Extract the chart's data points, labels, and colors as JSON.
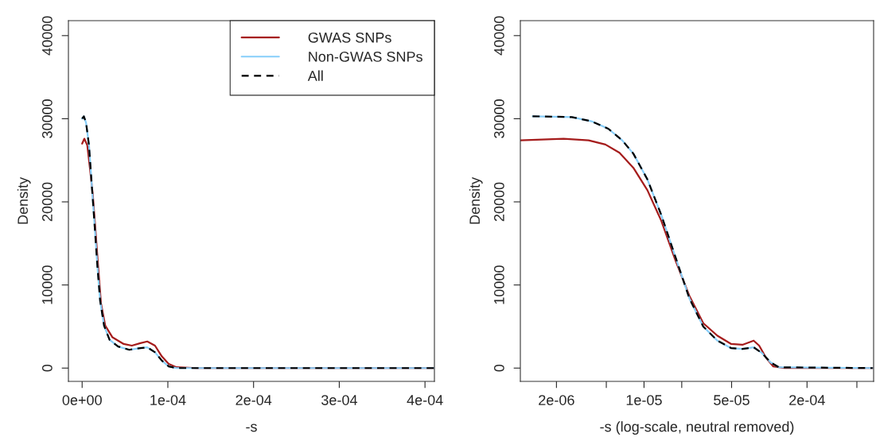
{
  "chart_data": [
    {
      "type": "line",
      "xlabel": "-s",
      "ylabel": "Density",
      "legend": "top right",
      "grid": false,
      "xlim": [
        -1.6e-05,
        0.000411
      ],
      "ylim": [
        -1600,
        41800
      ],
      "xticks": [
        {
          "value": 0,
          "label": "0e+00"
        },
        {
          "value": 0.0001,
          "label": "1e-04"
        },
        {
          "value": 0.0002,
          "label": "2e-04"
        },
        {
          "value": 0.0003,
          "label": "3e-04"
        },
        {
          "value": 0.0004,
          "label": "4e-04"
        }
      ],
      "yticks": [
        0,
        10000,
        20000,
        30000,
        40000
      ],
      "series": [
        {
          "name": "GWAS SNPs",
          "color": "#a51c1c",
          "line_style": "solid",
          "x": [
            0,
            2.6e-06,
            6e-06,
            9e-06,
            1.25e-05,
            1.57e-05,
            1.9e-05,
            2.2e-05,
            2.7e-05,
            3.54e-05,
            4.85e-05,
            5.8e-05,
            6.8e-05,
            7.6e-05,
            8.5e-05,
            9.3e-05,
            0.000101,
            0.00011,
            0.000134,
            0.000411
          ],
          "values": [
            27000,
            27600,
            26800,
            24100,
            20800,
            16400,
            11800,
            7800,
            5100,
            3700,
            2900,
            2700,
            3000,
            3200,
            2700,
            1400,
            500,
            100,
            0,
            0
          ]
        },
        {
          "name": "Non-GWAS SNPs",
          "color": "#87cefa",
          "line_style": "solid",
          "x": [
            0,
            2e-06,
            4.6e-06,
            8e-06,
            1.1e-05,
            1.44e-05,
            1.77e-05,
            2.1e-05,
            2.56e-05,
            3.2e-05,
            4.2e-05,
            5.5e-05,
            6.8e-05,
            7.6e-05,
            8.5e-05,
            9.3e-05,
            0.000101,
            0.00011,
            0.000411
          ],
          "values": [
            30000,
            30300,
            29500,
            26800,
            22400,
            17400,
            12400,
            8100,
            5100,
            3400,
            2600,
            2200,
            2400,
            2500,
            1900,
            900,
            200,
            0,
            0
          ]
        },
        {
          "name": "All",
          "color": "#000000",
          "line_style": "dashed",
          "x": [
            0,
            2e-06,
            4.6e-06,
            8e-06,
            1.1e-05,
            1.44e-05,
            1.77e-05,
            2.1e-05,
            2.56e-05,
            3.2e-05,
            4.2e-05,
            5.5e-05,
            6.8e-05,
            7.6e-05,
            8.5e-05,
            9.3e-05,
            0.000101,
            0.00011,
            0.000411
          ],
          "values": [
            30000,
            30300,
            29500,
            26800,
            22400,
            17400,
            12400,
            8100,
            5100,
            3400,
            2600,
            2200,
            2400,
            2500,
            1900,
            900,
            200,
            0,
            0
          ]
        }
      ]
    },
    {
      "type": "line",
      "xlabel": "-s (log-scale, neutral removed)",
      "ylabel": "Density",
      "grid": false,
      "log": "x",
      "xlim": [
        1.03e-06,
        0.00068
      ],
      "ylim": [
        -1600,
        41800
      ],
      "xticks": [
        {
          "value": 2e-06,
          "label": "2e-06"
        },
        {
          "value": 5e-06,
          "label": null
        },
        {
          "value": 1e-05,
          "label": "1e-05"
        },
        {
          "value": 2e-05,
          "label": null
        },
        {
          "value": 5e-05,
          "label": "5e-05"
        },
        {
          "value": 0.0001,
          "label": null
        },
        {
          "value": 0.0002,
          "label": "2e-04"
        },
        {
          "value": 0.0005,
          "label": null
        }
      ],
      "yticks": [
        0,
        10000,
        20000,
        30000,
        40000
      ],
      "series": [
        {
          "color": "#a51c1c",
          "line_style": "solid",
          "x": [
            1.03e-06,
            2.28e-06,
            3.61e-06,
            4.92e-06,
            6.37e-06,
            8.22e-06,
            1.064e-05,
            1.375e-05,
            1.778e-05,
            2.3e-05,
            2.97e-05,
            3.85e-05,
            4.97e-05,
            6.1e-05,
            7.5e-05,
            8.3e-05,
            9.46e-05,
            0.0001076,
            0.000132,
            0.000668
          ],
          "values": [
            27400,
            27600,
            27400,
            26900,
            25900,
            24100,
            21400,
            17700,
            13000,
            8700,
            5400,
            3900,
            2900,
            2800,
            3300,
            2700,
            1200,
            200,
            0,
            0
          ]
        },
        {
          "color": "#87cefa",
          "line_style": "solid",
          "x": [
            1.29e-06,
            2.65e-06,
            3.8e-06,
            5.18e-06,
            6.7e-06,
            8.22e-06,
            1.064e-05,
            1.375e-05,
            1.778e-05,
            2.3e-05,
            2.97e-05,
            3.85e-05,
            4.97e-05,
            6.1e-05,
            7.5e-05,
            8.75e-05,
            0.0001023,
            0.000119,
            0.000668
          ],
          "values": [
            30300,
            30200,
            29700,
            28800,
            27400,
            25800,
            22700,
            18400,
            13400,
            8400,
            5000,
            3300,
            2400,
            2300,
            2500,
            1800,
            700,
            100,
            0
          ]
        },
        {
          "color": "#000000",
          "line_style": "dashed",
          "x": [
            1.29e-06,
            2.65e-06,
            3.8e-06,
            5.18e-06,
            6.7e-06,
            8.22e-06,
            1.064e-05,
            1.375e-05,
            1.778e-05,
            2.3e-05,
            2.97e-05,
            3.85e-05,
            4.97e-05,
            6.1e-05,
            7.5e-05,
            8.75e-05,
            0.0001023,
            0.000119,
            0.000668
          ],
          "values": [
            30300,
            30200,
            29700,
            28800,
            27400,
            25800,
            22700,
            18400,
            13400,
            8400,
            5000,
            3300,
            2400,
            2300,
            2500,
            1800,
            700,
            100,
            0
          ]
        }
      ]
    }
  ]
}
